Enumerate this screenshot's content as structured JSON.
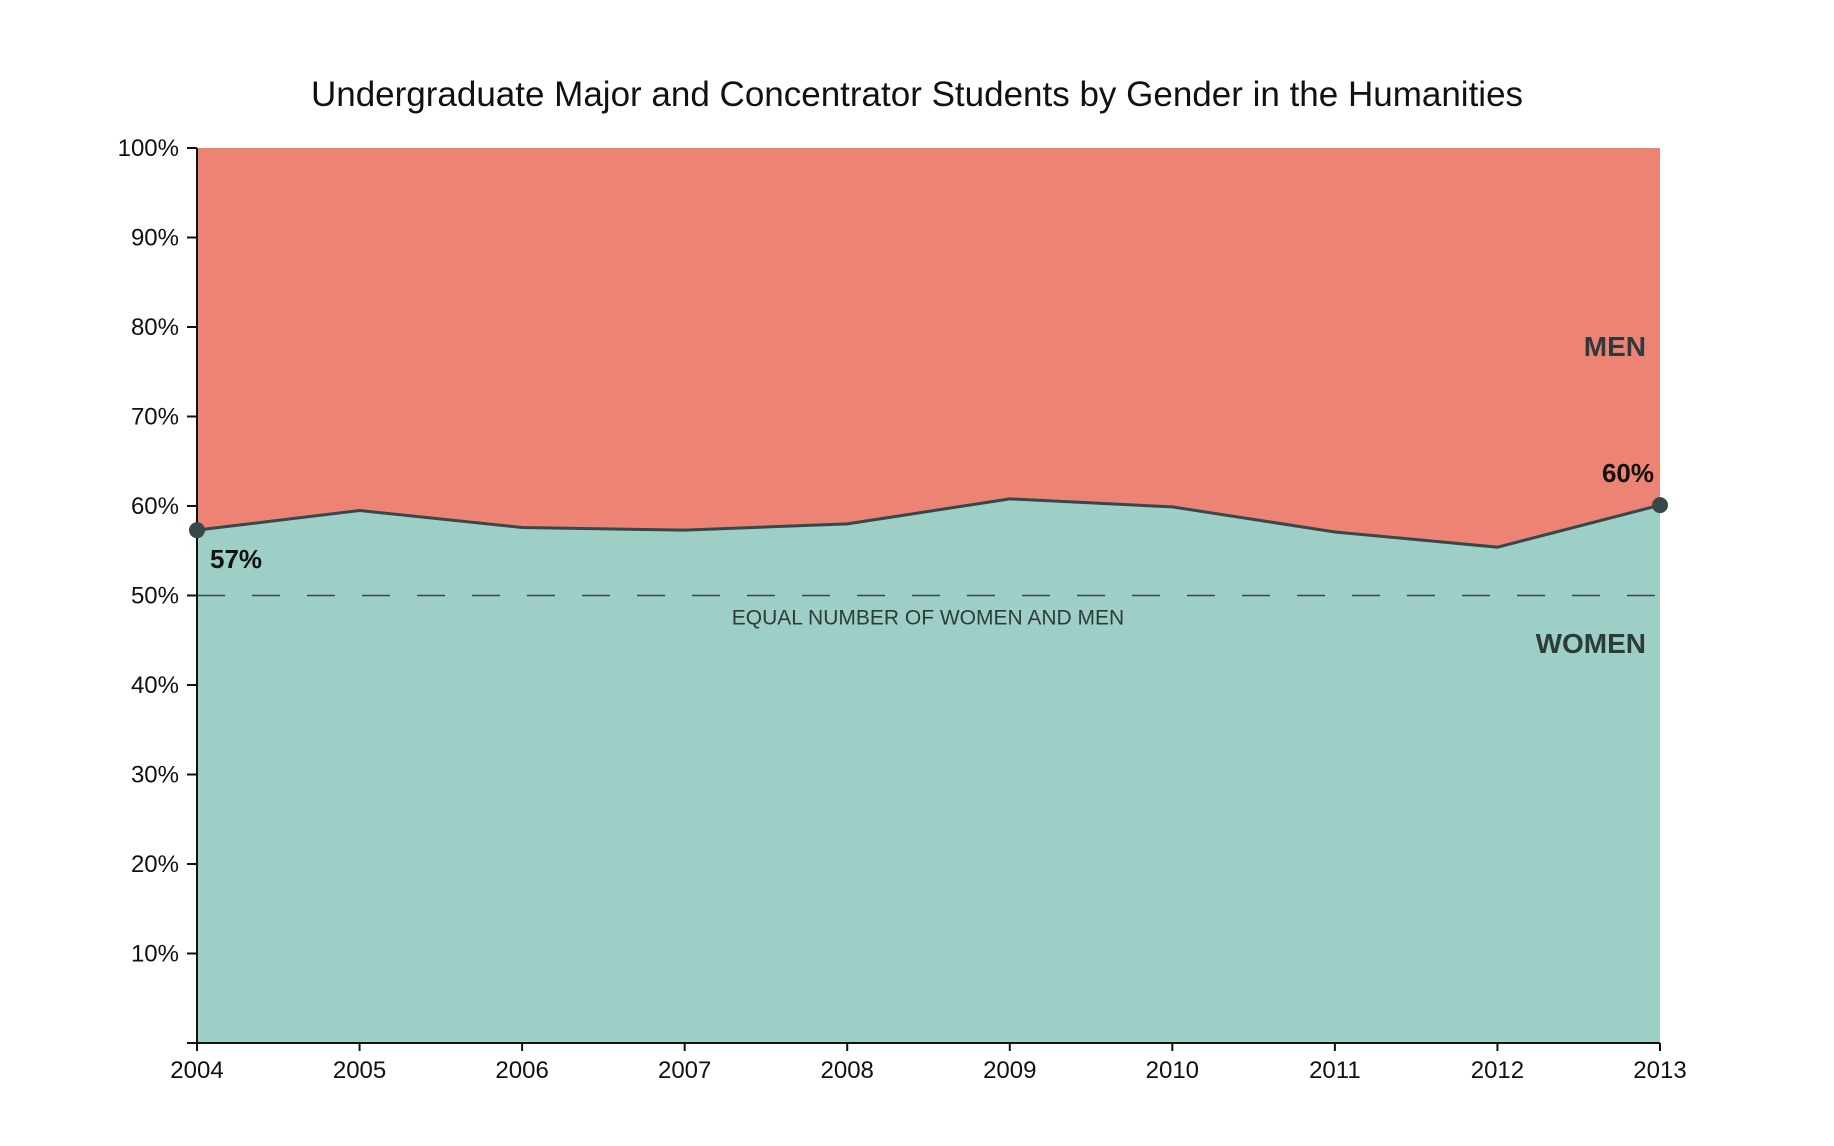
{
  "chart_data": {
    "type": "area",
    "title": "Undergraduate Major and Concentrator Students by Gender in the Humanities",
    "xlabel": "",
    "ylabel": "",
    "x": [
      "2004",
      "2005",
      "2006",
      "2007",
      "2008",
      "2009",
      "2010",
      "2011",
      "2012",
      "2013"
    ],
    "series": [
      {
        "name": "WOMEN",
        "values": [
          57.3,
          59.5,
          57.6,
          57.3,
          58.0,
          60.8,
          59.9,
          57.1,
          55.4,
          60.1
        ],
        "color": "#9ecfc7"
      },
      {
        "name": "MEN",
        "values": [
          42.7,
          40.5,
          42.4,
          42.7,
          42.0,
          39.2,
          40.1,
          42.9,
          44.6,
          39.9
        ],
        "color": "#ec8374"
      }
    ],
    "ylim": [
      0,
      100
    ],
    "yticks": [
      "10%",
      "20%",
      "30%",
      "40%",
      "50%",
      "60%",
      "70%",
      "80%",
      "90%",
      "100%"
    ],
    "yticks_values": [
      10,
      20,
      30,
      40,
      50,
      60,
      70,
      80,
      90,
      100
    ],
    "reference_line": {
      "value": 50,
      "label": "EQUAL NUMBER OF WOMEN AND MEN",
      "style": "dashed"
    },
    "annotations": [
      {
        "x": "2004",
        "text": "57%"
      },
      {
        "x": "2013",
        "text": "60%"
      }
    ],
    "grid": false,
    "line_color": "#37474a"
  }
}
